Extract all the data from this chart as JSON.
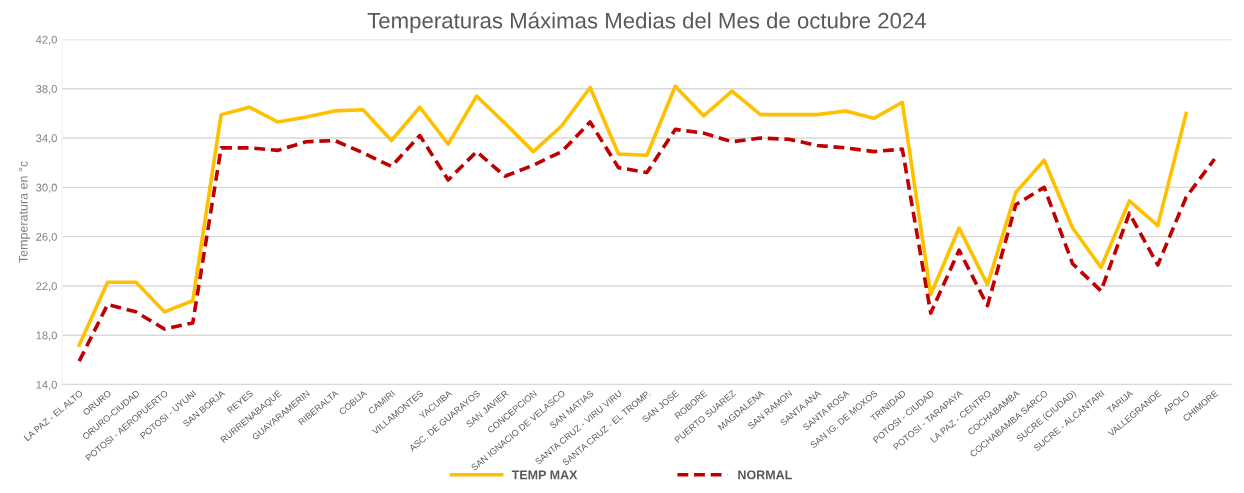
{
  "chart_data": {
    "type": "line",
    "title": "Temperaturas Máximas Medias del Mes de octubre 2024",
    "ylabel": "Temperatura en °c",
    "categories": [
      "LA PAZ - EL ALTO",
      "ORURO",
      "ORURO-CIUDAD",
      "POTOSI - AEROPUERTO",
      "POTOSI - UYUNI",
      "SAN BORJA",
      "REYES",
      "RURRENABAQUE",
      "GUAYARAMERIN",
      "RIBERALTA",
      "COBIJA",
      "CAMIRI",
      "VILLAMONTES",
      "YACUIBA",
      "ASC. DE GUARAYOS",
      "SAN JAVIER",
      "CONCEPCION",
      "SAN IGNACIO DE VELASCO",
      "SAN MATIAS",
      "SANTA CRUZ - VIRU VIRU",
      "SANTA CRUZ - EL TROMP.",
      "SAN JOSE",
      "ROBORE",
      "PUERTO SUAREZ",
      "MAGDALENA",
      "SAN RAMON",
      "SANTA ANA",
      "SANTA ROSA",
      "SAN IG. DE MOXOS",
      "TRINIDAD",
      "POTOSI - CIUDAD",
      "POTOSI - TARAPAYA",
      "LA PAZ - CENTRO",
      "COCHABAMBA",
      "COCHABAMBA SARCO",
      "SUCRE (CIUDAD)",
      "SUCRE - ALCANTARI",
      "TARIJA",
      "VALLEGRANDE",
      "APOLO",
      "CHIMORE"
    ],
    "series": [
      {
        "name": "TEMP MAX",
        "color": "#ffc000",
        "line_style": "solid",
        "values": [
          17.2,
          22.3,
          22.3,
          19.9,
          20.8,
          35.9,
          36.5,
          35.3,
          35.7,
          36.2,
          36.3,
          33.8,
          36.5,
          33.5,
          37.4,
          35.2,
          32.9,
          35.0,
          38.1,
          32.7,
          32.6,
          38.2,
          35.8,
          37.8,
          35.9,
          35.9,
          35.9,
          36.2,
          35.6,
          36.9,
          21.3,
          26.7,
          22.1,
          29.6,
          32.2,
          26.7,
          23.5,
          28.9,
          26.9,
          36.0,
          null
        ]
      },
      {
        "name": "NORMAL",
        "color": "#c00000",
        "line_style": "dashed",
        "values": [
          15.9,
          20.5,
          19.9,
          18.5,
          19.0,
          33.2,
          33.2,
          33.0,
          33.7,
          33.8,
          32.8,
          31.7,
          34.2,
          30.6,
          32.9,
          30.9,
          31.8,
          32.9,
          35.3,
          31.6,
          31.2,
          34.7,
          34.4,
          33.7,
          34.0,
          33.9,
          33.4,
          33.2,
          32.9,
          33.1,
          19.8,
          24.9,
          20.4,
          28.6,
          30.0,
          23.8,
          21.6,
          27.9,
          23.7,
          29.2,
          32.3
        ]
      }
    ],
    "ylim": [
      14,
      42
    ],
    "yticks": [
      {
        "value": 14,
        "label": "14,0"
      },
      {
        "value": 18,
        "label": "18,0"
      },
      {
        "value": 22,
        "label": "22,0"
      },
      {
        "value": 26,
        "label": "26,0"
      },
      {
        "value": 30,
        "label": "30,0"
      },
      {
        "value": 34,
        "label": "34,0"
      },
      {
        "value": 38,
        "label": "38,0"
      },
      {
        "value": 42,
        "label": "42,0"
      }
    ],
    "grid": "y",
    "legend": "bottom",
    "marker": "none"
  }
}
